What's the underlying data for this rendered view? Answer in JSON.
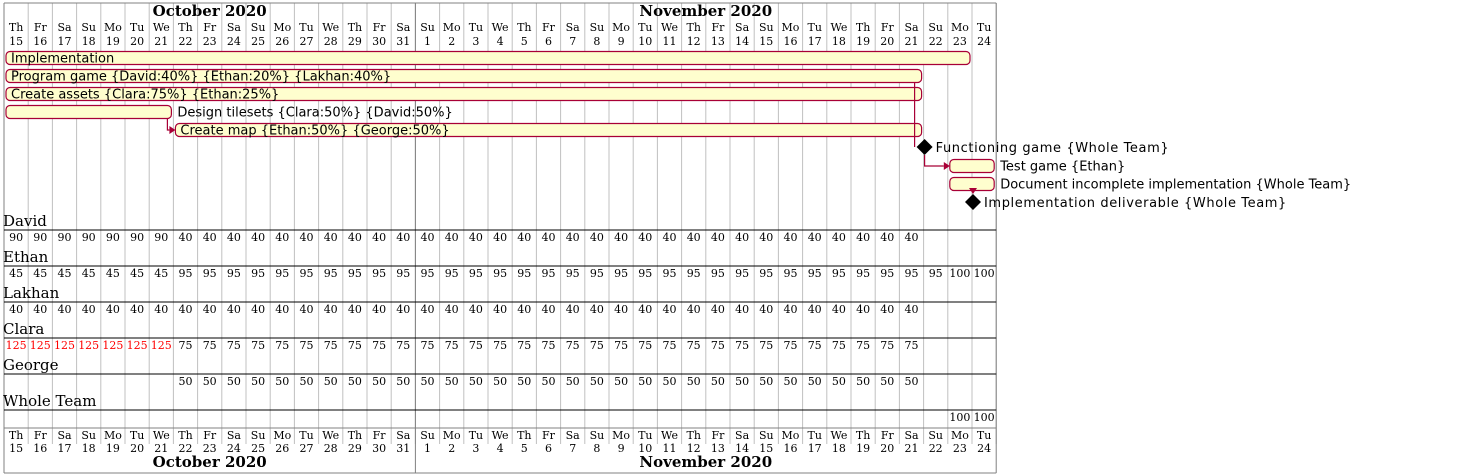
{
  "calendar": {
    "months": [
      {
        "name": "October 2020",
        "first_day": 15,
        "last_day": 31
      },
      {
        "name": "November 2020",
        "first_day": 1,
        "last_day": 24
      }
    ],
    "weekday_labels": [
      "Th",
      "Fr",
      "Sa",
      "Su",
      "Mo",
      "Tu",
      "We",
      "Th",
      "Fr",
      "Sa",
      "Su",
      "Mo",
      "Tu",
      "We",
      "Th",
      "Fr",
      "Sa",
      "Su",
      "Mo",
      "Tu",
      "We",
      "Th",
      "Fr",
      "Sa",
      "Su",
      "Mo",
      "Tu",
      "We",
      "Th",
      "Fr",
      "Sa",
      "Su",
      "Mo",
      "Tu",
      "We",
      "Th",
      "Fr",
      "Sa",
      "Su",
      "Mo",
      "Tu"
    ],
    "day_labels": [
      "15",
      "16",
      "17",
      "18",
      "19",
      "20",
      "21",
      "22",
      "23",
      "24",
      "25",
      "26",
      "27",
      "28",
      "29",
      "30",
      "31",
      "1",
      "2",
      "3",
      "4",
      "5",
      "6",
      "7",
      "8",
      "9",
      "10",
      "11",
      "12",
      "13",
      "14",
      "15",
      "16",
      "17",
      "18",
      "19",
      "20",
      "21",
      "22",
      "23",
      "24"
    ]
  },
  "tasks": [
    {
      "label": "Implementation",
      "start_day": 0,
      "end_day": 40,
      "label_position": "inside"
    },
    {
      "label": "Program game {David:40%} {Ethan:20%} {Lakhan:40%}",
      "start_day": 0,
      "end_day": 38,
      "label_position": "inside"
    },
    {
      "label": "Create assets {Clara:75%} {Ethan:25%}",
      "start_day": 0,
      "end_day": 38,
      "label_position": "inside"
    },
    {
      "label": "Design tilesets {Clara:50%} {David:50%}",
      "start_day": 0,
      "end_day": 7,
      "label_position": "outside"
    },
    {
      "label": "Create map {Ethan:50%} {George:50%}",
      "start_day": 7,
      "end_day": 38,
      "label_position": "inside"
    }
  ],
  "milestones": [
    {
      "label": "Functioning game {Whole Team}",
      "day": 38
    },
    {
      "label": "Implementation deliverable {Whole Team}",
      "day": 40
    }
  ],
  "late_tasks": [
    {
      "label": "Test game {Ethan}",
      "start_day": 39,
      "end_day": 41
    },
    {
      "label": "Document incomplete implementation {Whole Team}",
      "start_day": 39,
      "end_day": 41
    }
  ],
  "resources": [
    {
      "name": "David",
      "loads": [
        {
          "from": 0,
          "to": 7,
          "value": "90",
          "over": false
        },
        {
          "from": 7,
          "to": 38,
          "value": "40",
          "over": false
        }
      ]
    },
    {
      "name": "Ethan",
      "loads": [
        {
          "from": 0,
          "to": 7,
          "value": "45",
          "over": false
        },
        {
          "from": 7,
          "to": 39,
          "value": "95",
          "over": false
        },
        {
          "from": 39,
          "to": 41,
          "value": "100",
          "over": false
        }
      ]
    },
    {
      "name": "Lakhan",
      "loads": [
        {
          "from": 0,
          "to": 38,
          "value": "40",
          "over": false
        }
      ]
    },
    {
      "name": "Clara",
      "loads": [
        {
          "from": 0,
          "to": 7,
          "value": "125",
          "over": true
        },
        {
          "from": 7,
          "to": 38,
          "value": "75",
          "over": false
        }
      ]
    },
    {
      "name": "George",
      "loads": [
        {
          "from": 7,
          "to": 38,
          "value": "50",
          "over": false
        }
      ]
    },
    {
      "name": "Whole Team",
      "loads": [
        {
          "from": 39,
          "to": 41,
          "value": "100",
          "over": false
        }
      ]
    }
  ],
  "colors": {
    "bar_fill": "#fefece",
    "bar_stroke": "#a80036",
    "arrow": "#a80036",
    "grid": "#c0c0c0",
    "overload": "#ff0000",
    "text": "#000000"
  }
}
